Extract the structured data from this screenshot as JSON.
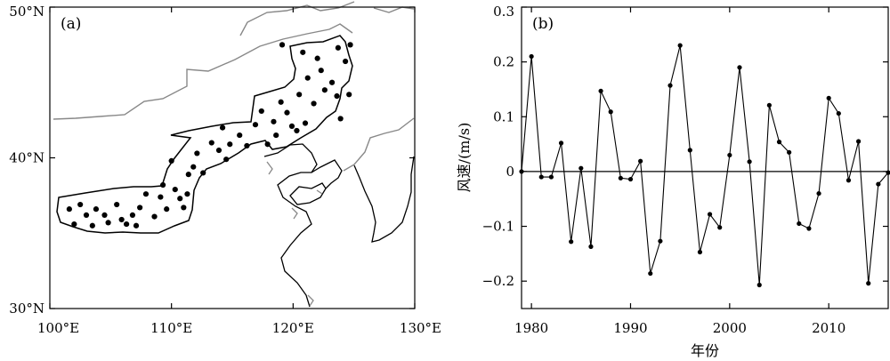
{
  "chart_data": [
    {
      "type": "scatter",
      "panel_label": "(a)",
      "xlabel": "",
      "ylabel": "",
      "xlim": [
        100,
        130
      ],
      "ylim": [
        30,
        50
      ],
      "x_tick_labels": [
        "100°E",
        "110°E",
        "120°E",
        "130°E"
      ],
      "y_tick_labels": [
        "30°N",
        "40°N",
        "50°N"
      ],
      "station_color": "#000000",
      "boundary_color": "#000000",
      "border_color": "#888888",
      "stations": [
        [
          101.6,
          36.6
        ],
        [
          102.0,
          35.6
        ],
        [
          102.5,
          36.9
        ],
        [
          103.0,
          36.2
        ],
        [
          103.5,
          35.5
        ],
        [
          103.8,
          36.6
        ],
        [
          104.5,
          36.2
        ],
        [
          104.8,
          35.7
        ],
        [
          105.5,
          36.9
        ],
        [
          105.9,
          35.9
        ],
        [
          106.3,
          35.6
        ],
        [
          106.8,
          36.2
        ],
        [
          107.1,
          35.5
        ],
        [
          107.4,
          36.7
        ],
        [
          107.9,
          37.6
        ],
        [
          108.6,
          36.1
        ],
        [
          109.1,
          37.4
        ],
        [
          109.3,
          38.2
        ],
        [
          109.6,
          36.6
        ],
        [
          110.0,
          39.8
        ],
        [
          110.3,
          37.9
        ],
        [
          110.7,
          37.3
        ],
        [
          111.0,
          36.7
        ],
        [
          111.3,
          37.6
        ],
        [
          111.4,
          38.9
        ],
        [
          111.8,
          39.4
        ],
        [
          112.1,
          40.3
        ],
        [
          112.6,
          39.0
        ],
        [
          113.3,
          41.0
        ],
        [
          113.9,
          40.5
        ],
        [
          114.2,
          42.0
        ],
        [
          114.5,
          39.9
        ],
        [
          114.8,
          40.9
        ],
        [
          115.6,
          41.5
        ],
        [
          116.2,
          40.8
        ],
        [
          116.9,
          42.2
        ],
        [
          117.4,
          43.1
        ],
        [
          117.9,
          40.9
        ],
        [
          118.4,
          42.4
        ],
        [
          118.6,
          41.5
        ],
        [
          119.0,
          43.7
        ],
        [
          119.5,
          43.0
        ],
        [
          119.9,
          42.1
        ],
        [
          120.3,
          41.8
        ],
        [
          120.5,
          44.2
        ],
        [
          121.0,
          42.3
        ],
        [
          121.2,
          45.3
        ],
        [
          121.7,
          43.6
        ],
        [
          122.3,
          45.8
        ],
        [
          122.6,
          44.5
        ],
        [
          123.2,
          45.0
        ],
        [
          123.6,
          44.1
        ],
        [
          123.9,
          42.6
        ],
        [
          124.3,
          46.4
        ],
        [
          119.1,
          47.5
        ],
        [
          120.8,
          47.0
        ],
        [
          122.0,
          46.6
        ],
        [
          123.7,
          47.3
        ],
        [
          124.7,
          47.5
        ],
        [
          124.6,
          44.2
        ]
      ]
    },
    {
      "type": "line",
      "panel_label": "(b)",
      "xlabel": "年份",
      "ylabel": "风速/(m/s)",
      "xlim": [
        1979,
        2016
      ],
      "ylim": [
        -0.25,
        0.3
      ],
      "x_ticks": [
        1980,
        1990,
        2000,
        2010
      ],
      "y_ticks": [
        -0.2,
        -0.1,
        0,
        0.1,
        0.2,
        0.3
      ],
      "y_tick_labels": [
        "−0.2",
        "−0.1",
        "0",
        "0.1",
        "0.2",
        "0.3"
      ],
      "x_tick_labels": [
        "1980",
        "1990",
        "2000",
        "2010"
      ],
      "line_color": "#000000",
      "series": [
        {
          "x": [
            1979,
            1980,
            1981,
            1982,
            1983,
            1984,
            1985,
            1986,
            1987,
            1988,
            1989,
            1990,
            1991,
            1992,
            1993,
            1994,
            1995,
            1996,
            1997,
            1998,
            1999,
            2000,
            2001,
            2002,
            2003,
            2004,
            2005,
            2006,
            2007,
            2008,
            2009,
            2010,
            2011,
            2012,
            2013,
            2014,
            2015,
            2016
          ],
          "values": [
            0.0,
            0.21,
            -0.01,
            -0.01,
            0.052,
            -0.128,
            0.006,
            -0.137,
            0.147,
            0.109,
            -0.012,
            -0.014,
            0.019,
            -0.186,
            -0.127,
            0.157,
            0.23,
            0.039,
            -0.147,
            -0.078,
            -0.102,
            0.03,
            0.19,
            0.018,
            -0.207,
            0.121,
            0.054,
            0.035,
            -0.095,
            -0.104,
            -0.04,
            0.134,
            0.106,
            -0.016,
            0.055,
            -0.204,
            -0.023,
            -0.002
          ]
        }
      ]
    }
  ]
}
